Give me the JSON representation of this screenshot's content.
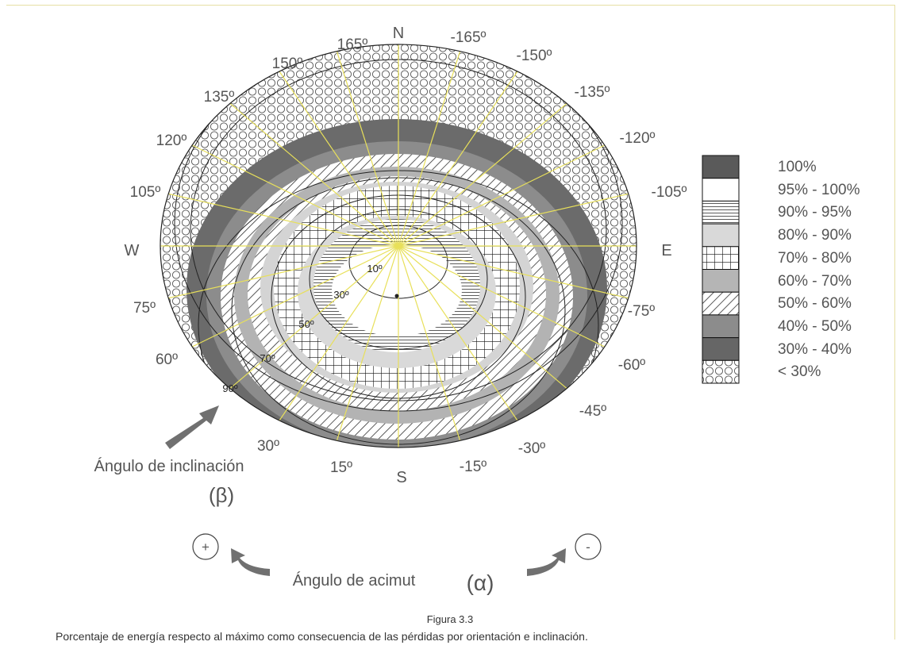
{
  "diagram": {
    "compass": {
      "north": "N",
      "south": "S",
      "east": "E",
      "west": "W"
    },
    "azimuth_labels": [
      "165º",
      "-165º",
      "150º",
      "-150º",
      "135º",
      "-135º",
      "120º",
      "-120º",
      "105º",
      "-105º",
      "75º",
      "-75º",
      "60º",
      "-60º",
      "-45º",
      "30º",
      "-30º",
      "15º",
      "-15º"
    ],
    "tilt_labels": [
      "10º",
      "30º",
      "50º",
      "70º",
      "90º"
    ],
    "inclination_label": "Ángulo de inclinación",
    "inclination_symbol": "(β)",
    "azimuth_label": "Ángulo de acimut",
    "azimuth_symbol": "(α)",
    "plus_sign": "+",
    "minus_sign": "-"
  },
  "legend": {
    "items": [
      {
        "label": "100%",
        "fill": "#5a5a5a",
        "pattern": "solid"
      },
      {
        "label": "95% - 100%",
        "fill": "#ffffff",
        "pattern": "solid"
      },
      {
        "label": "90% - 95%",
        "fill": "#ffffff",
        "pattern": "hlines"
      },
      {
        "label": "80% - 90%",
        "fill": "#d9d9d9",
        "pattern": "solid"
      },
      {
        "label": "70% - 80%",
        "fill": "#ffffff",
        "pattern": "grid"
      },
      {
        "label": "60% - 70%",
        "fill": "#b5b5b5",
        "pattern": "solid"
      },
      {
        "label": "50% - 60%",
        "fill": "#ffffff",
        "pattern": "diagonal"
      },
      {
        "label": "40% - 50%",
        "fill": "#8c8c8c",
        "pattern": "solid"
      },
      {
        "label": "30% - 40%",
        "fill": "#666666",
        "pattern": "solid"
      },
      {
        "label": "< 30%",
        "fill": "#ffffff",
        "pattern": "circles"
      }
    ]
  },
  "caption": {
    "figure_number": "Figura 3.3",
    "description": "Porcentaje de energía respecto al máximo como consecuencia de las pérdidas por orientación e inclinación."
  },
  "colors": {
    "spoke": "#e8e05a",
    "frame": "#e6dfa4",
    "arrow": "#707070"
  }
}
